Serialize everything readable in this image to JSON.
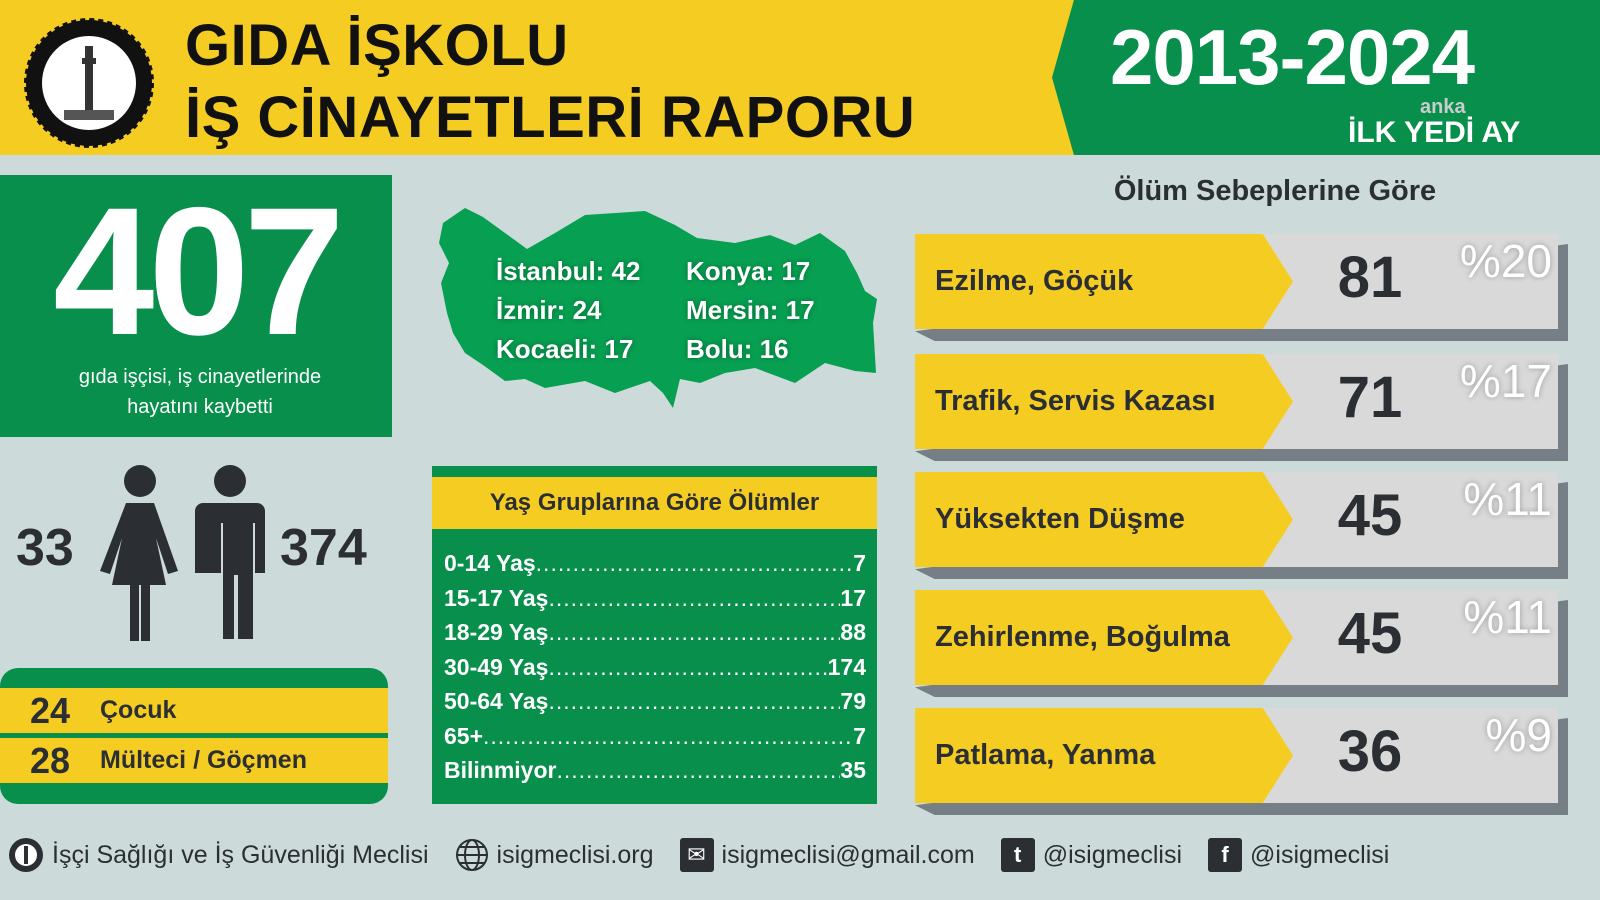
{
  "header": {
    "title_line1": "GIDA İŞKOLU",
    "title_line2": "İŞ CİNAYETLERİ RAPORU",
    "years": "2013-2024",
    "period": "İLK YEDİ AY",
    "watermark": "anka"
  },
  "colors": {
    "yellow": "#F5CD22",
    "green": "#078F4B",
    "background": "#CDDADA",
    "dark": "#2B2F33"
  },
  "total": {
    "value": "407",
    "caption_line1": "gıda işçisi, iş cinayetlerinde",
    "caption_line2": "hayatını kaybetti"
  },
  "gender": {
    "female": "33",
    "male": "374",
    "icons": [
      "woman-icon",
      "man-icon"
    ]
  },
  "groups": [
    {
      "value": "24",
      "label": "Çocuk"
    },
    {
      "value": "28",
      "label": "Mülteci / Göçmen"
    }
  ],
  "cities": [
    {
      "text": "İstanbul: 42"
    },
    {
      "text": "Konya: 17"
    },
    {
      "text": "İzmir: 24"
    },
    {
      "text": "Mersin: 17"
    },
    {
      "text": "Kocaeli: 17"
    },
    {
      "text": "Bolu: 16"
    }
  ],
  "age": {
    "title": "Yaş Gruplarına Göre Ölümler",
    "rows": [
      {
        "label": "0-14 Yaş",
        "value": "7"
      },
      {
        "label": "15-17 Yaş",
        "value": "17"
      },
      {
        "label": "18-29 Yaş",
        "value": "88"
      },
      {
        "label": "30-49 Yaş",
        "value": "174"
      },
      {
        "label": "50-64 Yaş",
        "value": "79"
      },
      {
        "label": "65+",
        "value": "7"
      },
      {
        "label": "Bilinmiyor",
        "value": "35"
      }
    ]
  },
  "causes": {
    "title": "Ölüm Sebeplerine Göre",
    "rows": [
      {
        "label": "Ezilme, Göçük",
        "count": "81",
        "percent": "%20"
      },
      {
        "label": "Trafik, Servis Kazası",
        "count": "71",
        "percent": "%17"
      },
      {
        "label": "Yüksekten Düşme",
        "count": "45",
        "percent": "%11"
      },
      {
        "label": "Zehirlenme, Boğulma",
        "count": "45",
        "percent": "%11"
      },
      {
        "label": "Patlama, Yanma",
        "count": "36",
        "percent": "%9"
      }
    ]
  },
  "footer": {
    "org": "İşçi Sağlığı ve İş Güvenliği Meclisi",
    "website": "isigmeclisi.org",
    "email": "isigmeclisi@gmail.com",
    "twitter": "@isigmeclisi",
    "facebook": "@isigmeclisi"
  }
}
